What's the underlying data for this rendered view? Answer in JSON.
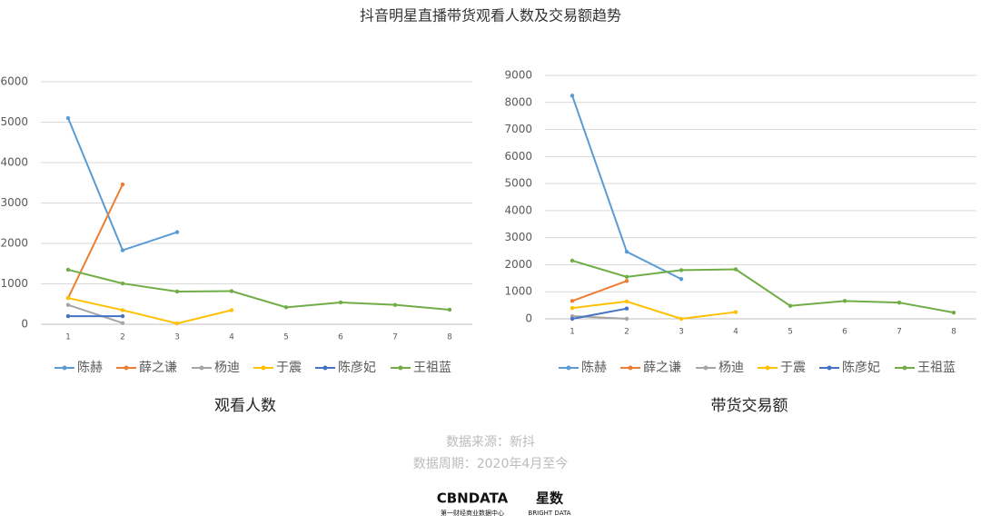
{
  "title": "抖音明星直播带货观看人数及交易额趋势",
  "source": "数据来源：新抖",
  "period": "数据周期：2020年4月至今",
  "logo": {
    "brand": "CBNDATA",
    "brand_sub": "第一财经商业数据中心",
    "partner": "星数",
    "partner_sub": "BRIGHT DATA"
  },
  "chart_data": [
    {
      "type": "line",
      "title": "观看人数",
      "x": [
        1,
        2,
        3,
        4,
        5,
        6,
        7,
        8
      ],
      "xlim": [
        0.5,
        8.5
      ],
      "xticks": [
        1,
        2,
        3,
        4,
        5,
        6,
        7,
        8
      ],
      "ylim": [
        0,
        6000
      ],
      "yticks": [
        0,
        1000,
        2000,
        3000,
        4000,
        5000,
        6000
      ],
      "grid": true,
      "legend": "bottom",
      "series": [
        {
          "name": "陈赫",
          "color": "#5b9bd5",
          "values": [
            5100,
            1830,
            2280,
            null,
            null,
            null,
            null,
            null
          ]
        },
        {
          "name": "薛之谦",
          "color": "#ed7d31",
          "values": [
            650,
            3460,
            null,
            null,
            null,
            null,
            null,
            null
          ]
        },
        {
          "name": "杨迪",
          "color": "#a5a5a5",
          "values": [
            480,
            30,
            null,
            null,
            null,
            null,
            null,
            null
          ]
        },
        {
          "name": "于震",
          "color": "#ffc000",
          "values": [
            650,
            350,
            20,
            350,
            null,
            null,
            null,
            null
          ]
        },
        {
          "name": "陈彦妃",
          "color": "#4472c4",
          "values": [
            200,
            200,
            null,
            null,
            null,
            null,
            null,
            null
          ]
        },
        {
          "name": "王祖蓝",
          "color": "#70ad47",
          "values": [
            1350,
            1010,
            810,
            820,
            420,
            540,
            480,
            360
          ]
        }
      ]
    },
    {
      "type": "line",
      "title": "带货交易额",
      "x": [
        1,
        2,
        3,
        4,
        5,
        6,
        7,
        8
      ],
      "xlim": [
        0.5,
        8.5
      ],
      "xticks": [
        1,
        2,
        3,
        4,
        5,
        6,
        7,
        8
      ],
      "ylim": [
        0,
        9000
      ],
      "yticks": [
        0,
        1000,
        2000,
        3000,
        4000,
        5000,
        6000,
        7000,
        8000,
        9000
      ],
      "grid": true,
      "legend": "bottom",
      "series": [
        {
          "name": "陈赫",
          "color": "#5b9bd5",
          "values": [
            8250,
            2480,
            1470,
            null,
            null,
            null,
            null,
            null
          ]
        },
        {
          "name": "薛之谦",
          "color": "#ed7d31",
          "values": [
            660,
            1400,
            null,
            null,
            null,
            null,
            null,
            null
          ]
        },
        {
          "name": "杨迪",
          "color": "#a5a5a5",
          "values": [
            100,
            0,
            null,
            null,
            null,
            null,
            null,
            null
          ]
        },
        {
          "name": "于震",
          "color": "#ffc000",
          "values": [
            400,
            640,
            0,
            250,
            null,
            null,
            null,
            null
          ]
        },
        {
          "name": "陈彦妃",
          "color": "#4472c4",
          "values": [
            0,
            380,
            null,
            null,
            null,
            null,
            null,
            null
          ]
        },
        {
          "name": "王祖蓝",
          "color": "#70ad47",
          "values": [
            2150,
            1550,
            1800,
            1830,
            480,
            660,
            600,
            230
          ]
        }
      ]
    }
  ]
}
